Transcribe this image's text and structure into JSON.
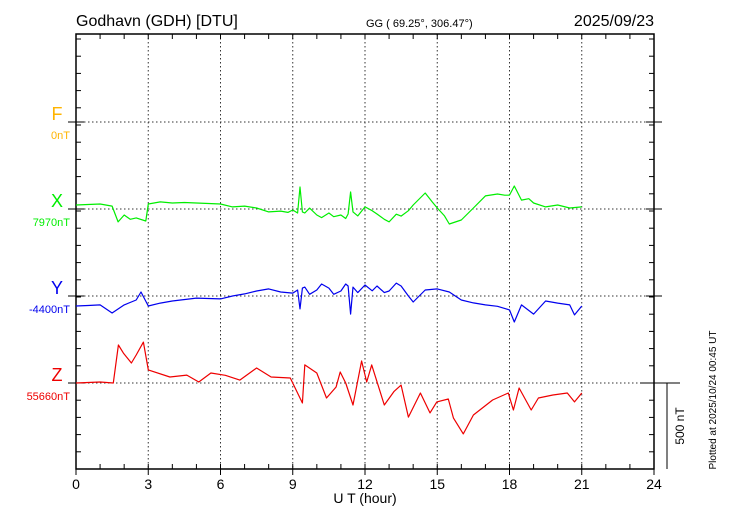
{
  "header": {
    "station": "Godhavn (GDH)  [DTU]",
    "coords": "GG ( 69.25°, 306.47°)",
    "date": "2025/09/23"
  },
  "footer": {
    "plotted": "Plotted at 2025/10/24 00:45 UT",
    "scale_label": "500 nT"
  },
  "chart_data": {
    "type": "line",
    "title": "Godhavn (GDH) [DTU] 2025/09/23",
    "xlabel": "U T (hour)",
    "xlim": [
      0,
      24
    ],
    "xticks": [
      "0",
      "3",
      "6",
      "9",
      "12",
      "15",
      "18",
      "21",
      "24"
    ],
    "scale_bar_nT": 500,
    "grid": true,
    "series": [
      {
        "name": "F",
        "label": "F",
        "baseline_label": "0nT",
        "baseline": 0,
        "color": "#ffb400",
        "points": []
      },
      {
        "name": "X",
        "label": "X",
        "baseline_label": "7970nT",
        "baseline": 7970,
        "color": "#00ee00",
        "points": [
          [
            0,
            23
          ],
          [
            0.5,
            26
          ],
          [
            1,
            29
          ],
          [
            1.5,
            17
          ],
          [
            1.75,
            -75
          ],
          [
            2,
            -35
          ],
          [
            2.25,
            -60
          ],
          [
            2.5,
            -52
          ],
          [
            2.9,
            -70
          ],
          [
            3,
            29
          ],
          [
            3.5,
            41
          ],
          [
            4,
            35
          ],
          [
            4.5,
            38
          ],
          [
            5,
            35
          ],
          [
            5.5,
            32
          ],
          [
            6,
            29
          ],
          [
            6.5,
            12
          ],
          [
            7,
            17
          ],
          [
            7.5,
            6
          ],
          [
            8,
            -17
          ],
          [
            8.5,
            -12
          ],
          [
            8.8,
            -20
          ],
          [
            9,
            -6
          ],
          [
            9.2,
            -23
          ],
          [
            9.3,
            128
          ],
          [
            9.4,
            -17
          ],
          [
            9.5,
            -23
          ],
          [
            9.7,
            5
          ],
          [
            10,
            -35
          ],
          [
            10.2,
            -50
          ],
          [
            10.5,
            -23
          ],
          [
            10.7,
            -45
          ],
          [
            11,
            -35
          ],
          [
            11.2,
            -55
          ],
          [
            11.3,
            -29
          ],
          [
            11.4,
            99
          ],
          [
            11.5,
            -17
          ],
          [
            11.7,
            -40
          ],
          [
            12,
            12
          ],
          [
            12.3,
            -10
          ],
          [
            12.5,
            -29
          ],
          [
            12.8,
            -60
          ],
          [
            13,
            -75
          ],
          [
            13.3,
            -30
          ],
          [
            13.5,
            -41
          ],
          [
            13.8,
            -10
          ],
          [
            14,
            23
          ],
          [
            14.5,
            93
          ],
          [
            14.8,
            40
          ],
          [
            15,
            6
          ],
          [
            15.3,
            -40
          ],
          [
            15.5,
            -87
          ],
          [
            16,
            -64
          ],
          [
            16.5,
            6
          ],
          [
            17,
            76
          ],
          [
            17.5,
            87
          ],
          [
            17.8,
            80
          ],
          [
            18,
            81
          ],
          [
            18.2,
            134
          ],
          [
            18.5,
            52
          ],
          [
            18.8,
            60
          ],
          [
            19,
            35
          ],
          [
            19.5,
            12
          ],
          [
            20,
            23
          ],
          [
            20.5,
            6
          ],
          [
            21,
            12
          ]
        ]
      },
      {
        "name": "Y",
        "label": "Y",
        "baseline_label": "-4400nT",
        "baseline": -4400,
        "color": "#0000ee",
        "points": [
          [
            0,
            -58
          ],
          [
            0.5,
            -55
          ],
          [
            1,
            -52
          ],
          [
            1.5,
            -99
          ],
          [
            2,
            -52
          ],
          [
            2.5,
            -23
          ],
          [
            2.7,
            23
          ],
          [
            3,
            -58
          ],
          [
            3.5,
            -41
          ],
          [
            4,
            -29
          ],
          [
            5,
            -12
          ],
          [
            6,
            -17
          ],
          [
            6.5,
            0
          ],
          [
            7,
            12
          ],
          [
            7.5,
            29
          ],
          [
            8,
            41
          ],
          [
            8.5,
            23
          ],
          [
            9,
            17
          ],
          [
            9.2,
            35
          ],
          [
            9.3,
            -75
          ],
          [
            9.4,
            46
          ],
          [
            9.5,
            52
          ],
          [
            9.7,
            10
          ],
          [
            10,
            35
          ],
          [
            10.2,
            70
          ],
          [
            10.5,
            46
          ],
          [
            10.7,
            10
          ],
          [
            11,
            29
          ],
          [
            11.2,
            70
          ],
          [
            11.3,
            58
          ],
          [
            11.4,
            -105
          ],
          [
            11.5,
            52
          ],
          [
            11.7,
            20
          ],
          [
            12,
            64
          ],
          [
            12.3,
            30
          ],
          [
            12.5,
            58
          ],
          [
            12.8,
            20
          ],
          [
            13,
            29
          ],
          [
            13.3,
            75
          ],
          [
            13.5,
            58
          ],
          [
            13.8,
            0
          ],
          [
            14,
            -35
          ],
          [
            14.5,
            35
          ],
          [
            15,
            41
          ],
          [
            15.5,
            23
          ],
          [
            16,
            -23
          ],
          [
            16.5,
            -40
          ],
          [
            17,
            -52
          ],
          [
            17.5,
            -60
          ],
          [
            18,
            -81
          ],
          [
            18.2,
            -151
          ],
          [
            18.5,
            -52
          ],
          [
            19,
            -105
          ],
          [
            19.5,
            -29
          ],
          [
            20,
            -41
          ],
          [
            20.5,
            -52
          ],
          [
            20.7,
            -110
          ],
          [
            21,
            -58
          ]
        ]
      },
      {
        "name": "Z",
        "label": "Z",
        "baseline_label": "55660nT",
        "baseline": 55660,
        "color": "#ee0000",
        "points": [
          [
            0,
            0
          ],
          [
            0.5,
            3
          ],
          [
            1,
            6
          ],
          [
            1.55,
            0
          ],
          [
            1.76,
            221
          ],
          [
            1.97,
            174
          ],
          [
            2.3,
            116
          ],
          [
            2.5,
            163
          ],
          [
            2.8,
            238
          ],
          [
            3,
            76
          ],
          [
            3.9,
            35
          ],
          [
            4.6,
            46
          ],
          [
            5.1,
            6
          ],
          [
            5.6,
            58
          ],
          [
            6.2,
            45
          ],
          [
            6.8,
            17
          ],
          [
            7.5,
            87
          ],
          [
            8.1,
            35
          ],
          [
            8.9,
            29
          ],
          [
            9.4,
            -116
          ],
          [
            9.5,
            105
          ],
          [
            10,
            58
          ],
          [
            10.4,
            -87
          ],
          [
            10.8,
            -23
          ],
          [
            10.97,
            64
          ],
          [
            11.2,
            0
          ],
          [
            11.5,
            -128
          ],
          [
            11.86,
            128
          ],
          [
            12.07,
            6
          ],
          [
            12.28,
            105
          ],
          [
            12.8,
            -128
          ],
          [
            13.2,
            -50
          ],
          [
            13.5,
            -12
          ],
          [
            13.8,
            -198
          ],
          [
            14.3,
            -58
          ],
          [
            14.7,
            -174
          ],
          [
            14.98,
            -110
          ],
          [
            15.46,
            -93
          ],
          [
            15.67,
            -203
          ],
          [
            16.08,
            -296
          ],
          [
            16.5,
            -186
          ],
          [
            17.3,
            -99
          ],
          [
            17.95,
            -58
          ],
          [
            18.16,
            -157
          ],
          [
            18.4,
            -29
          ],
          [
            18.9,
            -157
          ],
          [
            19.2,
            -87
          ],
          [
            19.8,
            -70
          ],
          [
            20.4,
            -58
          ],
          [
            20.7,
            -110
          ],
          [
            21,
            -58
          ]
        ]
      }
    ]
  }
}
